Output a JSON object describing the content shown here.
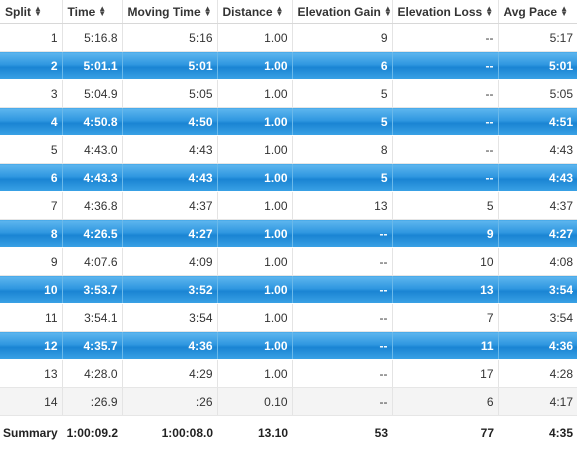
{
  "columns": [
    {
      "label": "Split",
      "sort_icon": "sort-both-icon"
    },
    {
      "label": "Time",
      "sort_icon": "sort-both-icon"
    },
    {
      "label": "Moving Time",
      "sort_icon": "sort-both-icon"
    },
    {
      "label": "Distance",
      "sort_icon": "sort-both-icon"
    },
    {
      "label": "Elevation Gain",
      "sort_icon": "sort-both-icon"
    },
    {
      "label": "Elevation Loss",
      "sort_icon": "sort-both-icon"
    },
    {
      "label": "Avg Pace",
      "sort_icon": "sort-both-icon"
    }
  ],
  "rows": [
    {
      "split": "1",
      "time": "5:16.8",
      "moving_time": "5:16",
      "distance": "1.00",
      "elevation_gain": "9",
      "elevation_loss": "--",
      "avg_pace": "5:17"
    },
    {
      "split": "2",
      "time": "5:01.1",
      "moving_time": "5:01",
      "distance": "1.00",
      "elevation_gain": "6",
      "elevation_loss": "--",
      "avg_pace": "5:01"
    },
    {
      "split": "3",
      "time": "5:04.9",
      "moving_time": "5:05",
      "distance": "1.00",
      "elevation_gain": "5",
      "elevation_loss": "--",
      "avg_pace": "5:05"
    },
    {
      "split": "4",
      "time": "4:50.8",
      "moving_time": "4:50",
      "distance": "1.00",
      "elevation_gain": "5",
      "elevation_loss": "--",
      "avg_pace": "4:51"
    },
    {
      "split": "5",
      "time": "4:43.0",
      "moving_time": "4:43",
      "distance": "1.00",
      "elevation_gain": "8",
      "elevation_loss": "--",
      "avg_pace": "4:43"
    },
    {
      "split": "6",
      "time": "4:43.3",
      "moving_time": "4:43",
      "distance": "1.00",
      "elevation_gain": "5",
      "elevation_loss": "--",
      "avg_pace": "4:43"
    },
    {
      "split": "7",
      "time": "4:36.8",
      "moving_time": "4:37",
      "distance": "1.00",
      "elevation_gain": "13",
      "elevation_loss": "5",
      "avg_pace": "4:37"
    },
    {
      "split": "8",
      "time": "4:26.5",
      "moving_time": "4:27",
      "distance": "1.00",
      "elevation_gain": "--",
      "elevation_loss": "9",
      "avg_pace": "4:27"
    },
    {
      "split": "9",
      "time": "4:07.6",
      "moving_time": "4:09",
      "distance": "1.00",
      "elevation_gain": "--",
      "elevation_loss": "10",
      "avg_pace": "4:08"
    },
    {
      "split": "10",
      "time": "3:53.7",
      "moving_time": "3:52",
      "distance": "1.00",
      "elevation_gain": "--",
      "elevation_loss": "13",
      "avg_pace": "3:54"
    },
    {
      "split": "11",
      "time": "3:54.1",
      "moving_time": "3:54",
      "distance": "1.00",
      "elevation_gain": "--",
      "elevation_loss": "7",
      "avg_pace": "3:54"
    },
    {
      "split": "12",
      "time": "4:35.7",
      "moving_time": "4:36",
      "distance": "1.00",
      "elevation_gain": "--",
      "elevation_loss": "11",
      "avg_pace": "4:36"
    },
    {
      "split": "13",
      "time": "4:28.0",
      "moving_time": "4:29",
      "distance": "1.00",
      "elevation_gain": "--",
      "elevation_loss": "17",
      "avg_pace": "4:28"
    },
    {
      "split": "14",
      "time": ":26.9",
      "moving_time": ":26",
      "distance": "0.10",
      "elevation_gain": "--",
      "elevation_loss": "6",
      "avg_pace": "4:17"
    }
  ],
  "summary": {
    "label": "Summary",
    "time": "1:00:09.2",
    "moving_time": "1:00:08.0",
    "distance": "13.10",
    "elevation_gain": "53",
    "elevation_loss": "77",
    "avg_pace": "4:35"
  },
  "colors": {
    "highlight_row": "#2f97e0",
    "highlight_text": "#ffffff",
    "alt_light_row": "#f4f4f4"
  }
}
